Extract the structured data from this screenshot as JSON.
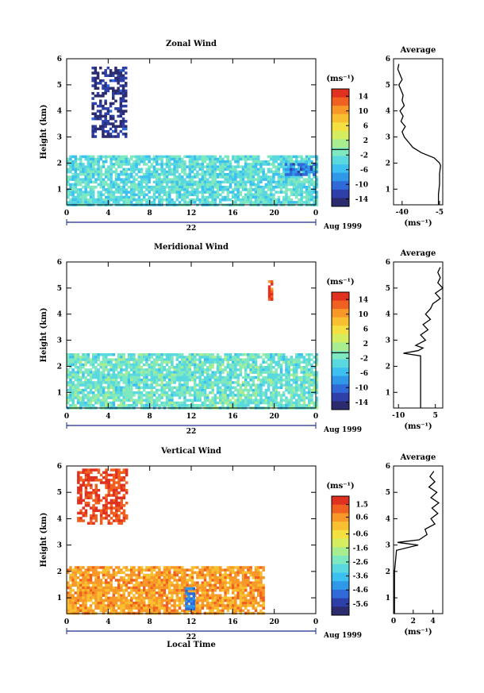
{
  "chart_data": [
    {
      "type": "heatmap",
      "title": "Zonal Wind",
      "ylabel": "Height (km)",
      "xlabel": "",
      "xticks": [
        "0",
        "4",
        "8",
        "12",
        "16",
        "20",
        "0"
      ],
      "yticks": [
        "1",
        "2",
        "3",
        "4",
        "5",
        "6"
      ],
      "xlim": [
        0,
        24
      ],
      "ylim": [
        0.4,
        6
      ],
      "date_label": "22",
      "month_label": "Aug 1999",
      "colorbar": {
        "label": "(ms⁻¹)",
        "ticks": [
          "14",
          "10",
          "6",
          "2",
          "-2",
          "-6",
          "-10",
          "-14"
        ],
        "range": [
          -16,
          16
        ],
        "marker_value": -0.5
      },
      "colors": {
        "neg_far": "#3b3b8c",
        "neg_mid": "#2f84d8",
        "neg_near": "#66c8f0",
        "near_zero": "#8fe8c8",
        "pos": "#f0e04a"
      },
      "regions": [
        {
          "name": "upper easterly cluster",
          "x": [
            2.4,
            5.6
          ],
          "y": [
            3.0,
            5.7
          ],
          "value": -14
        },
        {
          "name": "boundary layer",
          "x": [
            0,
            24
          ],
          "y": [
            0.4,
            2.3
          ],
          "value": -3
        },
        {
          "name": "strong easterly pocket",
          "x": [
            21,
            24
          ],
          "y": [
            1.6,
            2.0
          ],
          "value": -9
        }
      ],
      "profile": {
        "title": "Average",
        "unit": "(ms⁻¹)",
        "xticks": [
          "-40",
          "-5"
        ],
        "xtick_values": [
          -40,
          -5
        ],
        "xlim": [
          -48,
          -2
        ],
        "height": [
          0.4,
          0.8,
          1.2,
          1.6,
          1.9,
          2.0,
          2.2,
          2.4,
          2.6,
          2.8,
          2.9,
          3.0,
          3.2,
          3.4,
          3.6,
          3.8,
          4.0,
          4.2,
          4.4,
          4.6,
          4.8,
          5.0,
          5.2,
          5.4,
          5.6,
          5.8
        ],
        "value": [
          -6,
          -6,
          -5,
          -5,
          -4,
          -5,
          -10,
          -22,
          -30,
          -34,
          -36,
          -38,
          -40,
          -37,
          -41,
          -39,
          -42,
          -38,
          -40,
          -39,
          -41,
          -43,
          -40,
          -42,
          -44,
          -43
        ]
      }
    },
    {
      "type": "heatmap",
      "title": "Meridional Wind",
      "ylabel": "Height (km)",
      "xlabel": "",
      "xticks": [
        "0",
        "4",
        "8",
        "12",
        "16",
        "20",
        "0"
      ],
      "yticks": [
        "1",
        "2",
        "3",
        "4",
        "5",
        "6"
      ],
      "xlim": [
        0,
        24
      ],
      "ylim": [
        0.4,
        6
      ],
      "date_label": "22",
      "month_label": "Aug 1999",
      "colorbar": {
        "label": "(ms⁻¹)",
        "ticks": [
          "14",
          "10",
          "6",
          "2",
          "-2",
          "-6",
          "-10",
          "-14"
        ],
        "range": [
          -16,
          16
        ],
        "marker_value": -0.5
      },
      "colors": {
        "neg_far": "#3b3b8c",
        "neg_mid": "#2f84d8",
        "neg_near": "#66c8f0",
        "near_zero": "#8fe8c8",
        "pos": "#f0e04a"
      },
      "regions": [
        {
          "name": "boundary layer",
          "x": [
            0,
            24
          ],
          "y": [
            0.4,
            2.5
          ],
          "value": -2
        },
        {
          "name": "isolated upper echo",
          "x": [
            19.4,
            19.8
          ],
          "y": [
            4.6,
            5.3
          ],
          "value": 14
        }
      ],
      "profile": {
        "title": "Average",
        "unit": "(ms⁻¹)",
        "xticks": [
          "-10",
          "5"
        ],
        "xtick_values": [
          -10,
          5
        ],
        "xlim": [
          -12,
          8
        ],
        "height": [
          0.4,
          0.8,
          1.2,
          1.6,
          2.0,
          2.4,
          2.5,
          2.6,
          2.7,
          2.8,
          3.0,
          3.2,
          3.4,
          3.6,
          3.8,
          4.0,
          4.2,
          4.4,
          4.6,
          4.8,
          5.0,
          5.2,
          5.4,
          5.6,
          5.8
        ],
        "value": [
          -1,
          -1,
          -1,
          -1,
          -1,
          -1,
          -8,
          -2,
          0,
          -3,
          1,
          -1,
          2,
          0,
          3,
          1,
          3,
          4,
          7,
          5,
          8,
          6,
          7,
          6,
          7
        ]
      }
    },
    {
      "type": "heatmap",
      "title": "Vertical Wind",
      "ylabel": "Height (km)",
      "xlabel": "Local Time",
      "xticks": [
        "0",
        "4",
        "8",
        "12",
        "16",
        "20",
        "0"
      ],
      "yticks": [
        "1",
        "2",
        "3",
        "4",
        "5",
        "6"
      ],
      "xlim": [
        0,
        24
      ],
      "ylim": [
        0.4,
        6
      ],
      "date_label": "22",
      "month_label": "Aug 1999",
      "colorbar": {
        "label": "(ms⁻¹)",
        "ticks": [
          "1.5",
          "0.6",
          "-0.6",
          "-1.6",
          "-2.6",
          "-3.6",
          "-4.6",
          "-5.6"
        ],
        "range": [
          -6.4,
          2.1
        ]
      },
      "colors": {
        "fall": "#e83020",
        "weak": "#f8e030",
        "mid": "#f0b830",
        "strong_down": "#b02020"
      },
      "regions": [
        {
          "name": "upper fall-speed cluster",
          "x": [
            1.0,
            5.8
          ],
          "y": [
            3.8,
            5.9
          ],
          "value": 1.5
        },
        {
          "name": "boundary layer",
          "x": [
            0,
            19
          ],
          "y": [
            0.4,
            2.2
          ],
          "value": 0.5
        },
        {
          "name": "strong downdraft",
          "x": [
            11.4,
            12.2
          ],
          "y": [
            0.6,
            1.4
          ],
          "value": -4.6
        }
      ],
      "profile": {
        "title": "Average",
        "unit": "(ms⁻¹)",
        "xticks": [
          "0",
          "2",
          "4"
        ],
        "xtick_values": [
          0,
          2,
          4
        ],
        "xlim": [
          0,
          5
        ],
        "height": [
          0.4,
          0.8,
          1.2,
          1.6,
          2.0,
          2.4,
          2.8,
          3.0,
          3.1,
          3.2,
          3.4,
          3.6,
          3.8,
          4.0,
          4.2,
          4.4,
          4.6,
          4.8,
          5.0,
          5.2,
          5.4,
          5.6,
          5.8
        ],
        "value": [
          0.1,
          0.1,
          0.1,
          0.1,
          0.1,
          0.2,
          0.3,
          2.5,
          0.4,
          2.6,
          3.4,
          3.2,
          4.2,
          3.8,
          4.5,
          3.9,
          4.6,
          3.8,
          4.4,
          3.6,
          4.2,
          3.7,
          4.1
        ]
      }
    }
  ]
}
